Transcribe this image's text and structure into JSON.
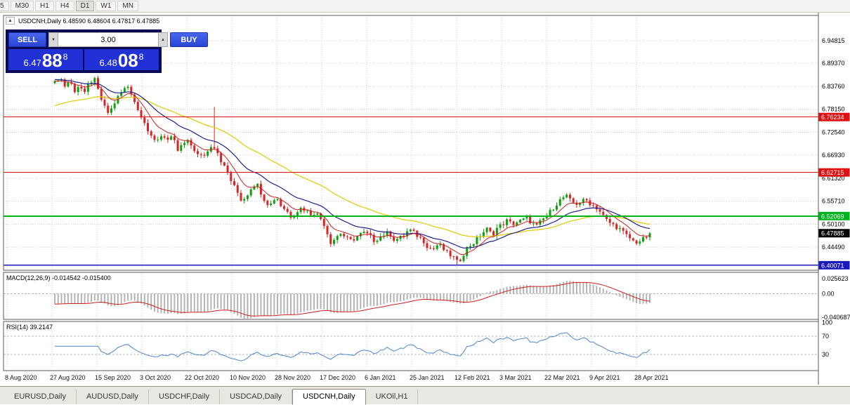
{
  "toolbar": {
    "timeframes": [
      "5",
      "M30",
      "H1",
      "H4",
      "D1",
      "W1",
      "MN"
    ],
    "active": "D1"
  },
  "chart_header": {
    "title": "USDCNH,Daily 6.48590 6.48604 6.47817 6.47885"
  },
  "icons": {
    "spin_up": "▲",
    "spin_down": "▼",
    "collapse_arrow": "▲"
  },
  "trade_panel": {
    "sell_label": "SELL",
    "buy_label": "BUY",
    "volume": "3.00",
    "sell_price": {
      "int": "6.47",
      "pips": "88",
      "pipette": "8"
    },
    "buy_price": {
      "int": "6.48",
      "pips": "08",
      "pipette": "8"
    }
  },
  "price_axis": {
    "ticks": [
      "6.94815",
      "6.89370",
      "6.83760",
      "6.78150",
      "6.72540",
      "6.66930",
      "6.61320",
      "6.55710",
      "6.50100",
      "6.44490"
    ]
  },
  "levels": [
    {
      "label": "6.76234",
      "value": 6.76234,
      "color": "#e01010",
      "width": 1
    },
    {
      "label": "6.62715",
      "value": 6.62715,
      "color": "#e01010",
      "width": 1
    },
    {
      "label": "6.52069",
      "value": 6.52069,
      "color": "#00b41e",
      "width": 2
    },
    {
      "label": "6.40071",
      "value": 6.40071,
      "color": "#1a1ab8",
      "width": 1.5
    }
  ],
  "current_price": {
    "label": "6.47885",
    "value": 6.47885,
    "bg": "#000000"
  },
  "indicators": {
    "macd": {
      "label": "MACD(12,26,9) -0.014542 -0.015400",
      "fast": 12,
      "slow": 26,
      "signal": 9,
      "range": [
        -0.040687,
        0.025623
      ],
      "axis": [
        {
          "label": "0.025623",
          "value": 0.025623
        },
        {
          "label": "0.00",
          "value": 0
        },
        {
          "label": "-0.040687",
          "value": -0.040687
        }
      ],
      "histogram_color": "#b4b4b4",
      "signal_color": "#cc2020"
    },
    "rsi": {
      "label": "RSI(14) 39.2147",
      "period": 14,
      "current": 39.2147,
      "axis": [
        {
          "label": "100",
          "value": 100
        },
        {
          "label": "70",
          "value": 70
        },
        {
          "label": "30",
          "value": 30
        }
      ],
      "guides": [
        70,
        30
      ],
      "line_color": "#4f85c8"
    }
  },
  "x_axis": {
    "labels": [
      "8 Aug 2020",
      "27 Aug 2020",
      "15 Sep 2020",
      "3 Oct 2020",
      "22 Oct 2020",
      "10 Nov 2020",
      "28 Nov 2020",
      "17 Dec 2020",
      "6 Jan 2021",
      "25 Jan 2021",
      "12 Feb 2021",
      "3 Mar 2021",
      "22 Mar 2021",
      "9 Apr 2021",
      "28 Apr 2021"
    ]
  },
  "tabs": {
    "items": [
      {
        "label": "EURUSD,Daily",
        "active": false
      },
      {
        "label": "AUDUSD,Daily",
        "active": false
      },
      {
        "label": "USDCHF,Daily",
        "active": false
      },
      {
        "label": "USDCAD,Daily",
        "active": false
      },
      {
        "label": "USDCNH,Daily",
        "active": true
      },
      {
        "label": "UKOil,H1",
        "active": false
      }
    ]
  },
  "chart_data": {
    "type": "candlestick",
    "symbol": "USDCNH",
    "timeframe": "Daily",
    "ylim": [
      6.3885,
      7.0102
    ],
    "last_close": 6.47885,
    "candle_count": 180,
    "x_range": [
      78,
      925
    ],
    "noise": 0.011,
    "wick": 0.0075,
    "up_color": "#0ea10e",
    "down_color": "#dd2222",
    "spikes": [
      {
        "x": 305,
        "high": 6.787
      },
      {
        "x": 652,
        "low": 6.401
      }
    ],
    "ma": {
      "fast": {
        "period": 8,
        "color": "#cc2020",
        "seed": 0
      },
      "mid": {
        "period": 20,
        "color": "#202090",
        "seed": 0.004
      },
      "slow": {
        "period": 45,
        "color": "#e2ca00",
        "seed": -0.06
      }
    },
    "macd_seeds": {
      "fast": 0.012,
      "slow": 0.03
    },
    "price_anchors": [
      [
        78,
        6.845
      ],
      [
        85,
        6.862
      ],
      [
        92,
        6.838
      ],
      [
        99,
        6.852
      ],
      [
        106,
        6.826
      ],
      [
        113,
        6.842
      ],
      [
        120,
        6.816
      ],
      [
        127,
        6.846
      ],
      [
        134,
        6.856
      ],
      [
        141,
        6.82
      ],
      [
        148,
        6.788
      ],
      [
        155,
        6.77
      ],
      [
        162,
        6.794
      ],
      [
        169,
        6.814
      ],
      [
        176,
        6.83
      ],
      [
        183,
        6.838
      ],
      [
        190,
        6.808
      ],
      [
        197,
        6.776
      ],
      [
        204,
        6.76
      ],
      [
        211,
        6.726
      ],
      [
        218,
        6.702
      ],
      [
        225,
        6.71
      ],
      [
        232,
        6.72
      ],
      [
        239,
        6.706
      ],
      [
        246,
        6.712
      ],
      [
        253,
        6.68
      ],
      [
        260,
        6.696
      ],
      [
        267,
        6.702
      ],
      [
        274,
        6.69
      ],
      [
        281,
        6.67
      ],
      [
        288,
        6.666
      ],
      [
        295,
        6.676
      ],
      [
        302,
        6.698
      ],
      [
        309,
        6.68
      ],
      [
        316,
        6.65
      ],
      [
        323,
        6.63
      ],
      [
        330,
        6.602
      ],
      [
        337,
        6.582
      ],
      [
        344,
        6.558
      ],
      [
        351,
        6.57
      ],
      [
        358,
        6.592
      ],
      [
        365,
        6.602
      ],
      [
        372,
        6.576
      ],
      [
        379,
        6.553
      ],
      [
        386,
        6.55
      ],
      [
        393,
        6.57
      ],
      [
        400,
        6.546
      ],
      [
        407,
        6.536
      ],
      [
        414,
        6.52
      ],
      [
        421,
        6.53
      ],
      [
        428,
        6.54
      ],
      [
        435,
        6.536
      ],
      [
        442,
        6.526
      ],
      [
        449,
        6.53
      ],
      [
        456,
        6.516
      ],
      [
        463,
        6.496
      ],
      [
        470,
        6.456
      ],
      [
        477,
        6.466
      ],
      [
        484,
        6.48
      ],
      [
        491,
        6.47
      ],
      [
        498,
        6.46
      ],
      [
        505,
        6.466
      ],
      [
        512,
        6.476
      ],
      [
        519,
        6.48
      ],
      [
        526,
        6.473
      ],
      [
        533,
        6.46
      ],
      [
        540,
        6.47
      ],
      [
        547,
        6.476
      ],
      [
        554,
        6.48
      ],
      [
        561,
        6.463
      ],
      [
        568,
        6.466
      ],
      [
        575,
        6.473
      ],
      [
        582,
        6.488
      ],
      [
        589,
        6.48
      ],
      [
        596,
        6.47
      ],
      [
        603,
        6.46
      ],
      [
        610,
        6.443
      ],
      [
        617,
        6.44
      ],
      [
        624,
        6.453
      ],
      [
        631,
        6.44
      ],
      [
        638,
        6.428
      ],
      [
        645,
        6.421
      ],
      [
        652,
        6.406
      ],
      [
        659,
        6.426
      ],
      [
        666,
        6.446
      ],
      [
        673,
        6.453
      ],
      [
        680,
        6.466
      ],
      [
        687,
        6.48
      ],
      [
        694,
        6.49
      ],
      [
        701,
        6.473
      ],
      [
        708,
        6.493
      ],
      [
        715,
        6.5
      ],
      [
        722,
        6.51
      ],
      [
        729,
        6.5
      ],
      [
        736,
        6.506
      ],
      [
        743,
        6.51
      ],
      [
        750,
        6.516
      ],
      [
        757,
        6.503
      ],
      [
        764,
        6.496
      ],
      [
        771,
        6.51
      ],
      [
        778,
        6.52
      ],
      [
        785,
        6.536
      ],
      [
        792,
        6.55
      ],
      [
        799,
        6.563
      ],
      [
        806,
        6.57
      ],
      [
        813,
        6.556
      ],
      [
        820,
        6.55
      ],
      [
        827,
        6.556
      ],
      [
        834,
        6.56
      ],
      [
        841,
        6.55
      ],
      [
        848,
        6.543
      ],
      [
        855,
        6.53
      ],
      [
        862,
        6.513
      ],
      [
        869,
        6.503
      ],
      [
        876,
        6.496
      ],
      [
        883,
        6.488
      ],
      [
        890,
        6.476
      ],
      [
        897,
        6.466
      ],
      [
        904,
        6.456
      ],
      [
        911,
        6.46
      ],
      [
        918,
        6.466
      ],
      [
        925,
        6.4789
      ]
    ]
  }
}
